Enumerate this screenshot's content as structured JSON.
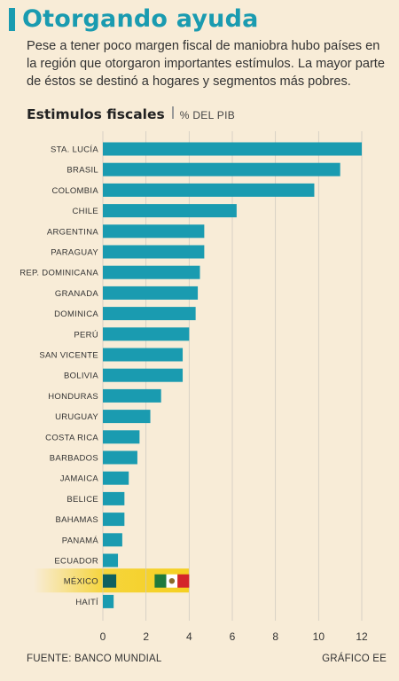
{
  "header": {
    "title": "Otorgando ayuda",
    "subtitle": "Pese a tener poco margen fiscal de maniobra hubo países en la región que otorgaron importantes estímulos. La mayor parte de éstos se destinó a hogares y segmentos más pobres."
  },
  "chart_title": "Estimulos fiscales",
  "chart_unit": "% DEL PIB",
  "footer": {
    "source": "FUENTE: BANCO MUNDIAL",
    "credit": "GRÁFICO EE"
  },
  "colors": {
    "bar": "#1a9bb0",
    "background": "#f8ecd7",
    "title": "#1a9bb0",
    "highlight": "#f5d020",
    "mexico_green": "#1f7a3c",
    "mexico_white": "#ffffff",
    "mexico_red": "#d4252a"
  },
  "chart_data": {
    "type": "bar",
    "orientation": "horizontal",
    "categories": [
      "STA. LUCÍA",
      "BRASIL",
      "COLOMBIA",
      "CHILE",
      "ARGENTINA",
      "PARAGUAY",
      "REP. DOMINICANA",
      "GRANADA",
      "DOMINICA",
      "PERÚ",
      "SAN VICENTE",
      "BOLIVIA",
      "HONDURAS",
      "URUGUAY",
      "COSTA RICA",
      "BARBADOS",
      "JAMAICA",
      "BELICE",
      "BAHAMAS",
      "PANAMÁ",
      "ECUADOR",
      "MÉXICO",
      "HAITÍ"
    ],
    "values": [
      12.0,
      11.0,
      9.8,
      6.2,
      4.7,
      4.7,
      4.5,
      4.4,
      4.3,
      4.0,
      3.7,
      3.7,
      2.7,
      2.2,
      1.7,
      1.6,
      1.2,
      1.0,
      1.0,
      0.9,
      0.7,
      4.0,
      0.5
    ],
    "highlight": "MÉXICO",
    "xlim": [
      0,
      12
    ],
    "xticks": [
      0,
      2,
      4,
      6,
      8,
      10,
      12
    ],
    "grid": true
  }
}
